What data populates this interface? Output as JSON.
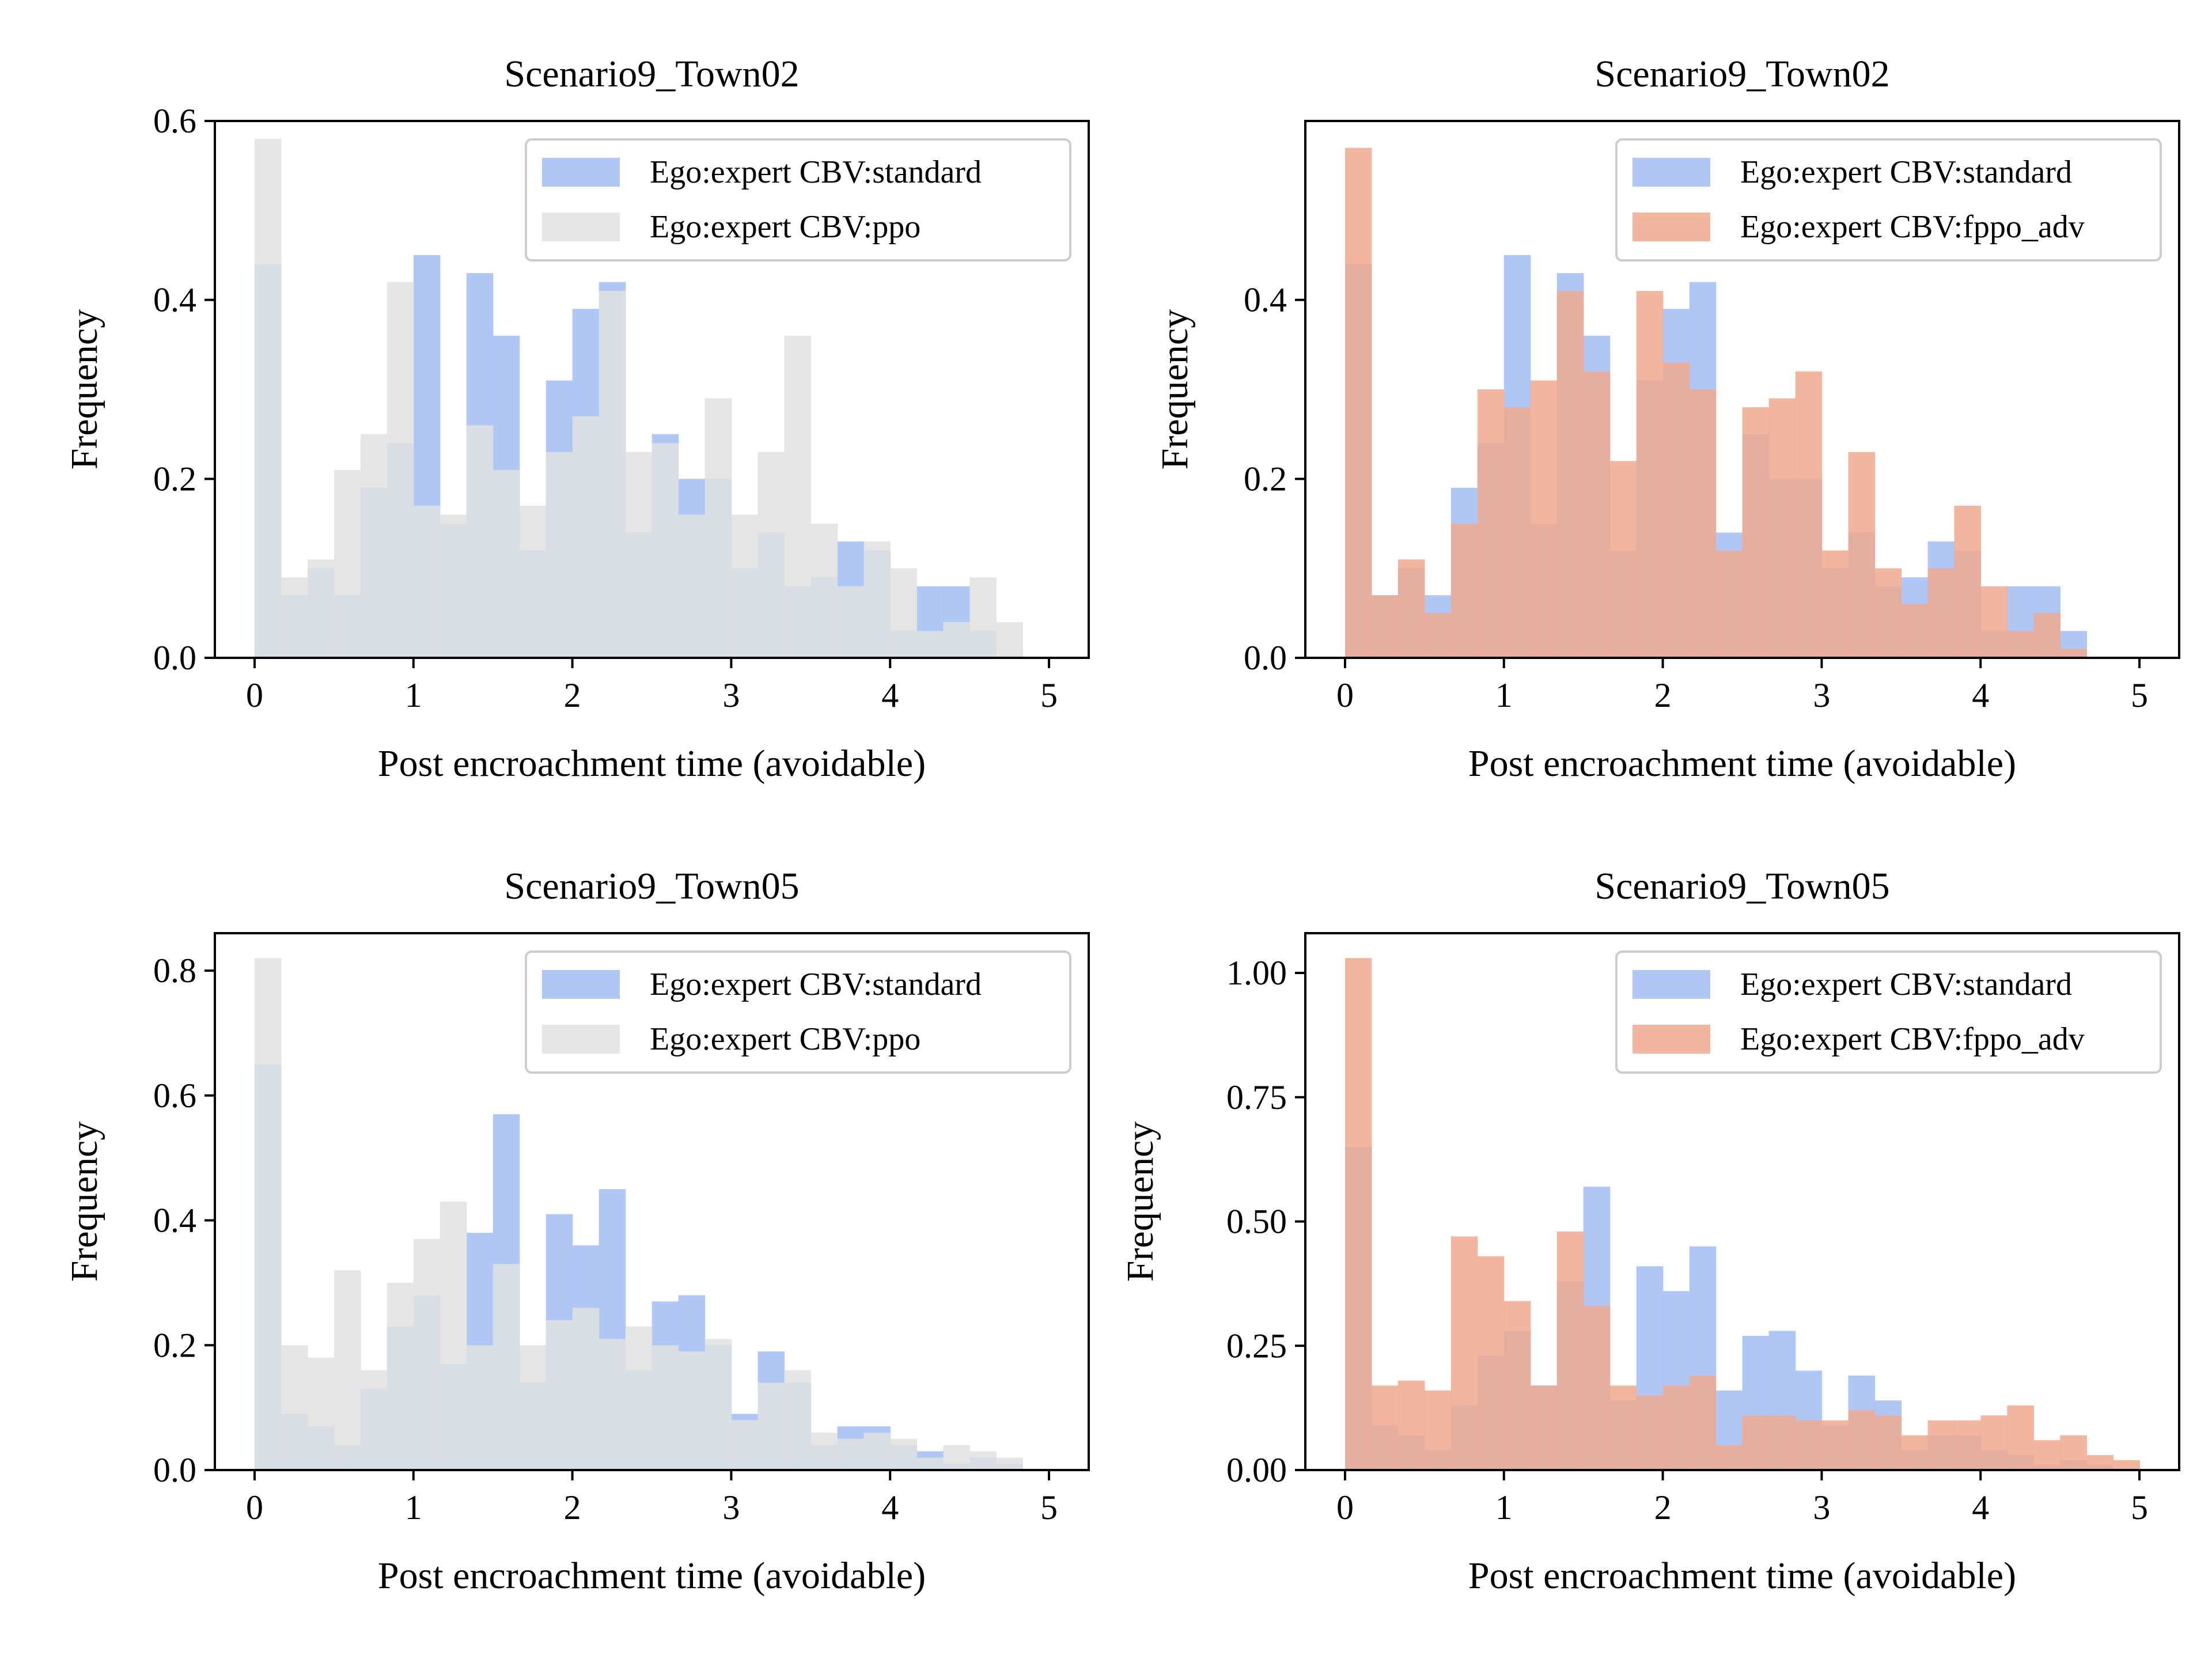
{
  "colors": {
    "standard": "#a2bdf5",
    "ppo": "#e0e0e0",
    "fppo_adv": "#f0a98f",
    "overlap_std_ppo": "#d0d5e3",
    "overlap_std_fppo": "#dda59b"
  },
  "chart_data": [
    {
      "type": "histogram",
      "title": "Scenario9_Town02",
      "xlabel": "Post encroachment time (avoidable)",
      "ylabel": "Frequency",
      "xlim": [
        -0.25,
        5.25
      ],
      "ylim": [
        0,
        0.6
      ],
      "xticks": [
        {
          "v": 0,
          "label": "0"
        },
        {
          "v": 1,
          "label": "1"
        },
        {
          "v": 2,
          "label": "2"
        },
        {
          "v": 3,
          "label": "3"
        },
        {
          "v": 4,
          "label": "4"
        },
        {
          "v": 5,
          "label": "5"
        }
      ],
      "yticks": [
        {
          "v": 0,
          "label": "0.0"
        },
        {
          "v": 0.2,
          "label": "0.2"
        },
        {
          "v": 0.4,
          "label": "0.4"
        },
        {
          "v": 0.6,
          "label": "0.6"
        }
      ],
      "legend_position": "upper right",
      "series": [
        {
          "name": "Ego:expert CBV:standard",
          "color": "standard",
          "bin_start": 0,
          "bin_width": 0.1667,
          "values": [
            0.44,
            0.07,
            0.1,
            0.07,
            0.19,
            0.24,
            0.45,
            0.15,
            0.43,
            0.36,
            0.12,
            0.31,
            0.39,
            0.42,
            0.14,
            0.25,
            0.2,
            0.2,
            0.1,
            0.14,
            0.08,
            0.09,
            0.13,
            0.12,
            0.03,
            0.08,
            0.08,
            0.03,
            0.0,
            0.0
          ]
        },
        {
          "name": "Ego:expert CBV:ppo",
          "color": "ppo",
          "bin_start": 0,
          "bin_width": 0.1667,
          "values": [
            0.58,
            0.09,
            0.11,
            0.21,
            0.25,
            0.42,
            0.17,
            0.16,
            0.26,
            0.21,
            0.17,
            0.23,
            0.27,
            0.41,
            0.23,
            0.24,
            0.16,
            0.29,
            0.16,
            0.23,
            0.36,
            0.15,
            0.08,
            0.13,
            0.1,
            0.03,
            0.04,
            0.09,
            0.04,
            0.0
          ]
        }
      ]
    },
    {
      "type": "histogram",
      "title": "Scenario9_Town02",
      "xlabel": "Post encroachment time (avoidable)",
      "ylabel": "Frequency",
      "xlim": [
        -0.25,
        5.25
      ],
      "ylim": [
        0,
        0.6
      ],
      "xticks": [
        {
          "v": 0,
          "label": "0"
        },
        {
          "v": 1,
          "label": "1"
        },
        {
          "v": 2,
          "label": "2"
        },
        {
          "v": 3,
          "label": "3"
        },
        {
          "v": 4,
          "label": "4"
        },
        {
          "v": 5,
          "label": "5"
        }
      ],
      "yticks": [
        {
          "v": 0,
          "label": "0.0"
        },
        {
          "v": 0.2,
          "label": "0.2"
        },
        {
          "v": 0.4,
          "label": "0.4"
        }
      ],
      "legend_position": "upper right",
      "series": [
        {
          "name": "Ego:expert CBV:standard",
          "color": "standard",
          "bin_start": 0,
          "bin_width": 0.1667,
          "values": [
            0.44,
            0.07,
            0.1,
            0.07,
            0.19,
            0.24,
            0.45,
            0.15,
            0.43,
            0.36,
            0.12,
            0.31,
            0.39,
            0.42,
            0.14,
            0.25,
            0.2,
            0.2,
            0.1,
            0.14,
            0.08,
            0.09,
            0.13,
            0.12,
            0.03,
            0.08,
            0.08,
            0.03,
            0.0,
            0.0
          ]
        },
        {
          "name": "Ego:expert CBV:fppo_adv",
          "color": "fppo_adv",
          "bin_start": 0,
          "bin_width": 0.1667,
          "values": [
            0.57,
            0.07,
            0.11,
            0.05,
            0.15,
            0.3,
            0.28,
            0.31,
            0.41,
            0.32,
            0.22,
            0.41,
            0.33,
            0.3,
            0.12,
            0.28,
            0.29,
            0.32,
            0.12,
            0.23,
            0.1,
            0.06,
            0.1,
            0.17,
            0.08,
            0.03,
            0.05,
            0.01,
            0.0,
            0.0
          ]
        }
      ]
    },
    {
      "type": "histogram",
      "title": "Scenario9_Town05",
      "xlabel": "Post encroachment time (avoidable)",
      "ylabel": "Frequency",
      "xlim": [
        -0.25,
        5.25
      ],
      "ylim": [
        0,
        0.86
      ],
      "xticks": [
        {
          "v": 0,
          "label": "0"
        },
        {
          "v": 1,
          "label": "1"
        },
        {
          "v": 2,
          "label": "2"
        },
        {
          "v": 3,
          "label": "3"
        },
        {
          "v": 4,
          "label": "4"
        },
        {
          "v": 5,
          "label": "5"
        }
      ],
      "yticks": [
        {
          "v": 0,
          "label": "0.0"
        },
        {
          "v": 0.2,
          "label": "0.2"
        },
        {
          "v": 0.4,
          "label": "0.4"
        },
        {
          "v": 0.6,
          "label": "0.6"
        },
        {
          "v": 0.8,
          "label": "0.8"
        }
      ],
      "legend_position": "upper right",
      "series": [
        {
          "name": "Ego:expert CBV:standard",
          "color": "standard",
          "bin_start": 0,
          "bin_width": 0.1667,
          "values": [
            0.65,
            0.09,
            0.07,
            0.04,
            0.13,
            0.23,
            0.28,
            0.17,
            0.38,
            0.57,
            0.14,
            0.41,
            0.36,
            0.45,
            0.16,
            0.27,
            0.28,
            0.2,
            0.09,
            0.19,
            0.14,
            0.04,
            0.07,
            0.07,
            0.04,
            0.03,
            0.01,
            0.02,
            0.01,
            0.0
          ]
        },
        {
          "name": "Ego:expert CBV:ppo",
          "color": "ppo",
          "bin_start": 0,
          "bin_width": 0.1667,
          "values": [
            0.82,
            0.2,
            0.18,
            0.32,
            0.16,
            0.3,
            0.37,
            0.43,
            0.2,
            0.33,
            0.2,
            0.24,
            0.26,
            0.21,
            0.23,
            0.2,
            0.19,
            0.21,
            0.08,
            0.14,
            0.16,
            0.06,
            0.05,
            0.06,
            0.05,
            0.02,
            0.04,
            0.03,
            0.02,
            0.0
          ]
        }
      ]
    },
    {
      "type": "histogram",
      "title": "Scenario9_Town05",
      "xlabel": "Post encroachment time (avoidable)",
      "ylabel": "Frequency",
      "xlim": [
        -0.25,
        5.25
      ],
      "ylim": [
        0,
        1.08
      ],
      "xticks": [
        {
          "v": 0,
          "label": "0"
        },
        {
          "v": 1,
          "label": "1"
        },
        {
          "v": 2,
          "label": "2"
        },
        {
          "v": 3,
          "label": "3"
        },
        {
          "v": 4,
          "label": "4"
        },
        {
          "v": 5,
          "label": "5"
        }
      ],
      "yticks": [
        {
          "v": 0,
          "label": "0.00"
        },
        {
          "v": 0.25,
          "label": "0.25"
        },
        {
          "v": 0.5,
          "label": "0.50"
        },
        {
          "v": 0.75,
          "label": "0.75"
        },
        {
          "v": 1.0,
          "label": "1.00"
        }
      ],
      "legend_position": "upper right",
      "series": [
        {
          "name": "Ego:expert CBV:standard",
          "color": "standard",
          "bin_start": 0,
          "bin_width": 0.1667,
          "values": [
            0.65,
            0.09,
            0.07,
            0.04,
            0.13,
            0.23,
            0.28,
            0.17,
            0.38,
            0.57,
            0.14,
            0.41,
            0.36,
            0.45,
            0.16,
            0.27,
            0.28,
            0.2,
            0.09,
            0.19,
            0.14,
            0.04,
            0.07,
            0.07,
            0.04,
            0.03,
            0.01,
            0.02,
            0.01,
            0.0
          ]
        },
        {
          "name": "Ego:expert CBV:fppo_adv",
          "color": "fppo_adv",
          "bin_start": 0,
          "bin_width": 0.1667,
          "values": [
            1.03,
            0.17,
            0.18,
            0.16,
            0.47,
            0.43,
            0.34,
            0.17,
            0.48,
            0.33,
            0.17,
            0.15,
            0.17,
            0.19,
            0.05,
            0.11,
            0.11,
            0.1,
            0.1,
            0.12,
            0.11,
            0.07,
            0.1,
            0.1,
            0.11,
            0.13,
            0.06,
            0.07,
            0.03,
            0.02
          ]
        }
      ]
    }
  ]
}
